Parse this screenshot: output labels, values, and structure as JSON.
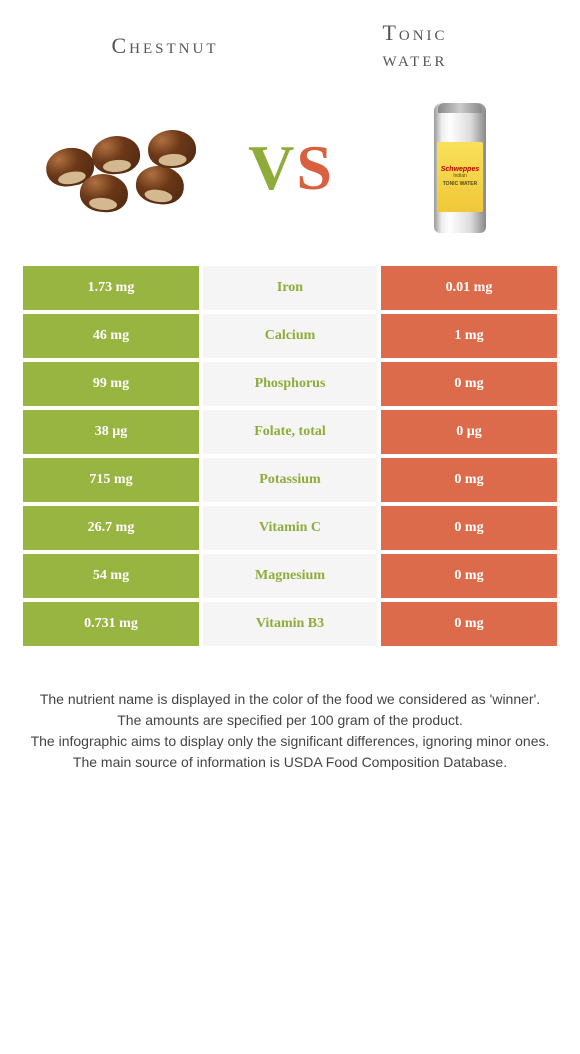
{
  "header": {
    "left_title": "Chestnut",
    "right_title_line1": "Tonic",
    "right_title_line2": "water"
  },
  "vs": {
    "v": "V",
    "s": "S"
  },
  "colors": {
    "left_bg": "#98b441",
    "right_bg": "#db6b4b",
    "mid_bg": "#f5f5f5",
    "left_text": "#8fac3a",
    "right_text": "#d9603e"
  },
  "rows": [
    {
      "left": "1.73 mg",
      "label": "Iron",
      "right": "0.01 mg",
      "winner": "left"
    },
    {
      "left": "46 mg",
      "label": "Calcium",
      "right": "1 mg",
      "winner": "left"
    },
    {
      "left": "99 mg",
      "label": "Phosphorus",
      "right": "0 mg",
      "winner": "left"
    },
    {
      "left": "38 µg",
      "label": "Folate, total",
      "right": "0 µg",
      "winner": "left"
    },
    {
      "left": "715 mg",
      "label": "Potassium",
      "right": "0 mg",
      "winner": "left"
    },
    {
      "left": "26.7 mg",
      "label": "Vitamin C",
      "right": "0 mg",
      "winner": "left"
    },
    {
      "left": "54 mg",
      "label": "Magnesium",
      "right": "0 mg",
      "winner": "left"
    },
    {
      "left": "0.731 mg",
      "label": "Vitamin B3",
      "right": "0 mg",
      "winner": "left"
    }
  ],
  "footer": {
    "line1": "The nutrient name is displayed in the color of the food we considered as 'winner'.",
    "line2": "The amounts are specified per 100 gram of the product.",
    "line3": "The infographic aims to display only the significant differences, ignoring minor ones.",
    "line4": "The main source of information is USDA Food Composition Database."
  },
  "can": {
    "brand": "Schweppes",
    "sub": "Indian",
    "type": "TONIC WATER"
  }
}
